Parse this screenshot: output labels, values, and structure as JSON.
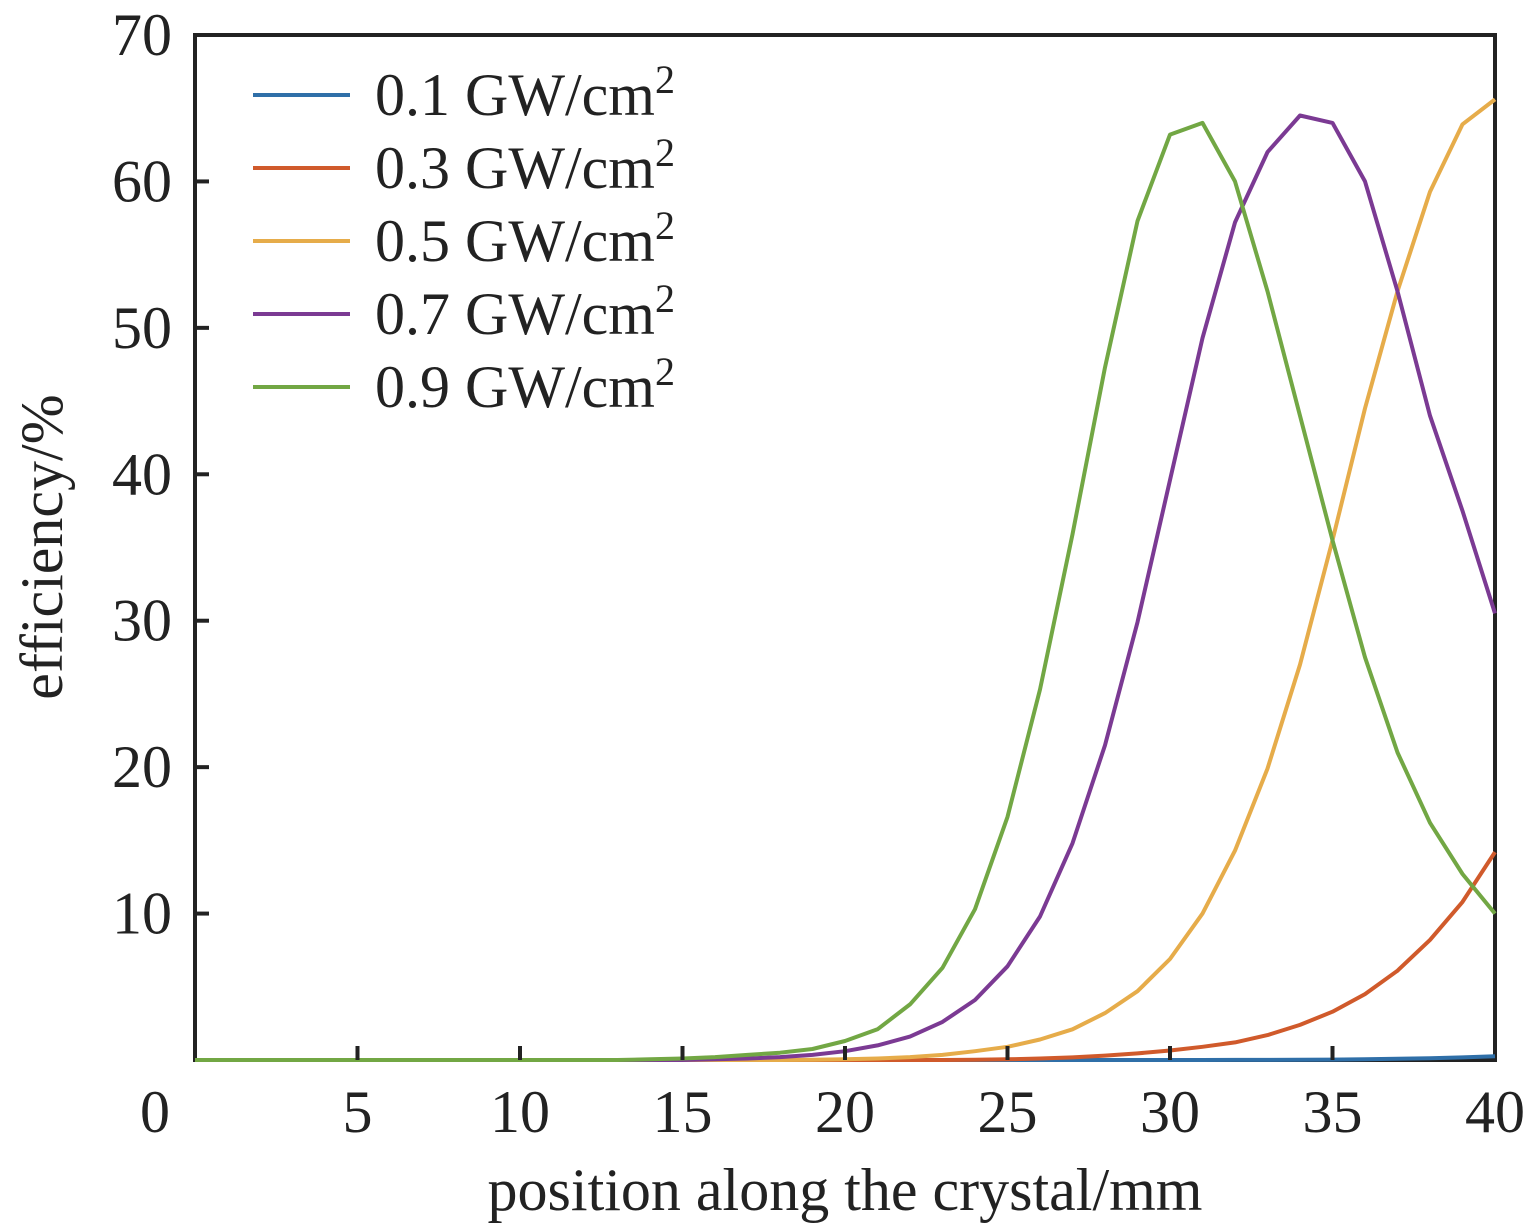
{
  "chart_data": {
    "type": "line",
    "xlabel": "position along the crystal/mm",
    "ylabel": "efficiency/%",
    "xlim": [
      0,
      40
    ],
    "ylim": [
      0,
      70
    ],
    "x_ticks": [
      "0",
      "5",
      "10",
      "15",
      "20",
      "25",
      "30",
      "35",
      "40"
    ],
    "y_ticks": [
      "10",
      "20",
      "30",
      "40",
      "50",
      "60",
      "70"
    ],
    "grid": false,
    "legend_position": "top-left",
    "x": [
      0,
      1,
      2,
      3,
      4,
      5,
      6,
      7,
      8,
      9,
      10,
      11,
      12,
      13,
      14,
      15,
      16,
      17,
      18,
      19,
      20,
      21,
      22,
      23,
      24,
      25,
      26,
      27,
      28,
      29,
      30,
      31,
      32,
      33,
      34,
      35,
      36,
      37,
      38,
      39,
      40
    ],
    "series": [
      {
        "name": "0.1 GW/cm",
        "superscript": "2",
        "color": "#2f6fa8",
        "values": [
          0,
          0,
          0,
          0,
          0,
          0,
          0,
          0,
          0,
          0,
          0,
          0,
          0,
          0,
          0,
          0,
          0,
          0,
          0,
          0,
          0,
          0,
          0,
          0,
          0,
          0,
          0,
          0,
          0,
          0,
          0,
          0,
          0.01,
          0.01,
          0.02,
          0.03,
          0.05,
          0.08,
          0.12,
          0.18,
          0.25
        ]
      },
      {
        "name": "0.3 GW/cm",
        "superscript": "2",
        "color": "#d05a2b",
        "values": [
          0,
          0,
          0,
          0,
          0,
          0,
          0,
          0,
          0,
          0,
          0,
          0,
          0,
          0,
          0,
          0,
          0,
          0,
          0,
          0,
          0,
          0,
          0,
          0,
          0.02,
          0.05,
          0.1,
          0.18,
          0.3,
          0.45,
          0.65,
          0.9,
          1.2,
          1.7,
          2.4,
          3.3,
          4.5,
          6.1,
          8.2,
          10.8,
          14.2
        ]
      },
      {
        "name": "0.5 GW/cm",
        "superscript": "2",
        "color": "#e6ac4a",
        "values": [
          0,
          0,
          0,
          0,
          0,
          0,
          0,
          0,
          0,
          0,
          0,
          0,
          0,
          0,
          0,
          0,
          0,
          0,
          0,
          0.02,
          0.05,
          0.1,
          0.2,
          0.35,
          0.6,
          0.9,
          1.4,
          2.1,
          3.2,
          4.7,
          6.9,
          10.0,
          14.3,
          19.9,
          27.0,
          35.5,
          44.5,
          52.5,
          59.3,
          63.9,
          65.6
        ]
      },
      {
        "name": "0.7 GW/cm",
        "superscript": "2",
        "color": "#7b3a93",
        "values": [
          0,
          0,
          0,
          0,
          0,
          0,
          0,
          0,
          0,
          0,
          0,
          0,
          0,
          0,
          0,
          0,
          0.05,
          0.1,
          0.2,
          0.35,
          0.6,
          1.0,
          1.6,
          2.6,
          4.1,
          6.4,
          9.8,
          14.8,
          21.5,
          29.9,
          39.6,
          49.3,
          57.2,
          62.0,
          64.5,
          64.0,
          60.0,
          52.5,
          44.0,
          37.5,
          30.5
        ]
      },
      {
        "name": "0.9 GW/cm",
        "superscript": "2",
        "color": "#72a744",
        "values": [
          0,
          0,
          0,
          0,
          0,
          0,
          0,
          0,
          0,
          0,
          0,
          0,
          0,
          0,
          0.05,
          0.1,
          0.2,
          0.35,
          0.5,
          0.75,
          1.3,
          2.1,
          3.8,
          6.3,
          10.3,
          16.6,
          25.3,
          35.9,
          47.3,
          57.3,
          63.2,
          64.0,
          60.0,
          52.5,
          44.0,
          35.5,
          27.5,
          21.0,
          16.2,
          12.7,
          10.0
        ]
      }
    ]
  }
}
